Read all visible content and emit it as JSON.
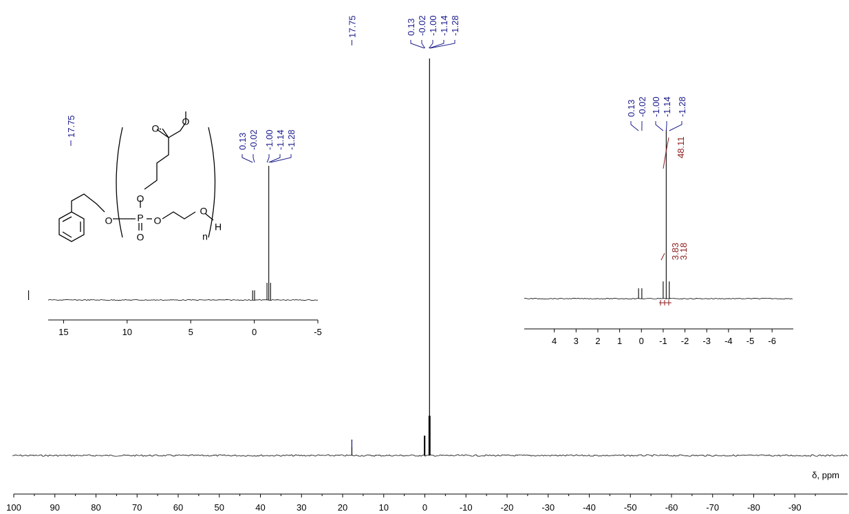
{
  "chart_data": [
    {
      "type": "line",
      "name_role": "main-spectrum",
      "xlabel": "δ, ppm",
      "xlim": [
        100,
        -100
      ],
      "x_ticks": [
        "100",
        "90",
        "80",
        "70",
        "60",
        "50",
        "40",
        "30",
        "20",
        "10",
        "0",
        "-10",
        "-20",
        "-30",
        "-40",
        "-50",
        "-60",
        "-70",
        "-80",
        "-90"
      ],
      "peaks": [
        {
          "shift": 17.75,
          "rel_height": 0.04
        },
        {
          "shift": 0.13,
          "rel_height": 0.05
        },
        {
          "shift": -0.02,
          "rel_height": 0.05
        },
        {
          "shift": -1.0,
          "rel_height": 0.1
        },
        {
          "shift": -1.14,
          "rel_height": 1.0
        },
        {
          "shift": -1.28,
          "rel_height": 0.1
        }
      ],
      "peak_labels_main": [
        "17.75"
      ],
      "peak_labels_cluster": [
        "0.13",
        "-0.02",
        "-1.00",
        "-1.14",
        "-1.28"
      ]
    },
    {
      "type": "line",
      "name_role": "inset-left",
      "xlim": [
        20,
        -5
      ],
      "x_ticks": [
        "15",
        "10",
        "5",
        "0",
        "-5"
      ],
      "peak_labels_main": [
        "17.75"
      ],
      "peak_labels_cluster": [
        "0.13",
        "-0.02",
        "-1.00",
        "-1.14",
        "-1.28"
      ]
    },
    {
      "type": "line",
      "name_role": "inset-right",
      "xlim": [
        5,
        -6.5
      ],
      "x_ticks": [
        "4",
        "3",
        "2",
        "1",
        "0",
        "-1",
        "-2",
        "-3",
        "-4",
        "-5",
        "-6"
      ],
      "peak_labels_cluster": [
        "0.13",
        "-0.02",
        "-1.00",
        "-1.14",
        "-1.28"
      ],
      "integrals": [
        "48.11",
        "3.83",
        "3.18"
      ]
    }
  ],
  "structure": {
    "atoms": [
      "O",
      "O",
      "O",
      "P",
      "O",
      "O",
      "O",
      "O",
      "H",
      "n"
    ]
  },
  "colors": {
    "spectrum": "#000000",
    "peak_label": "#1a1a8c",
    "integral": "#8b1a1a"
  }
}
